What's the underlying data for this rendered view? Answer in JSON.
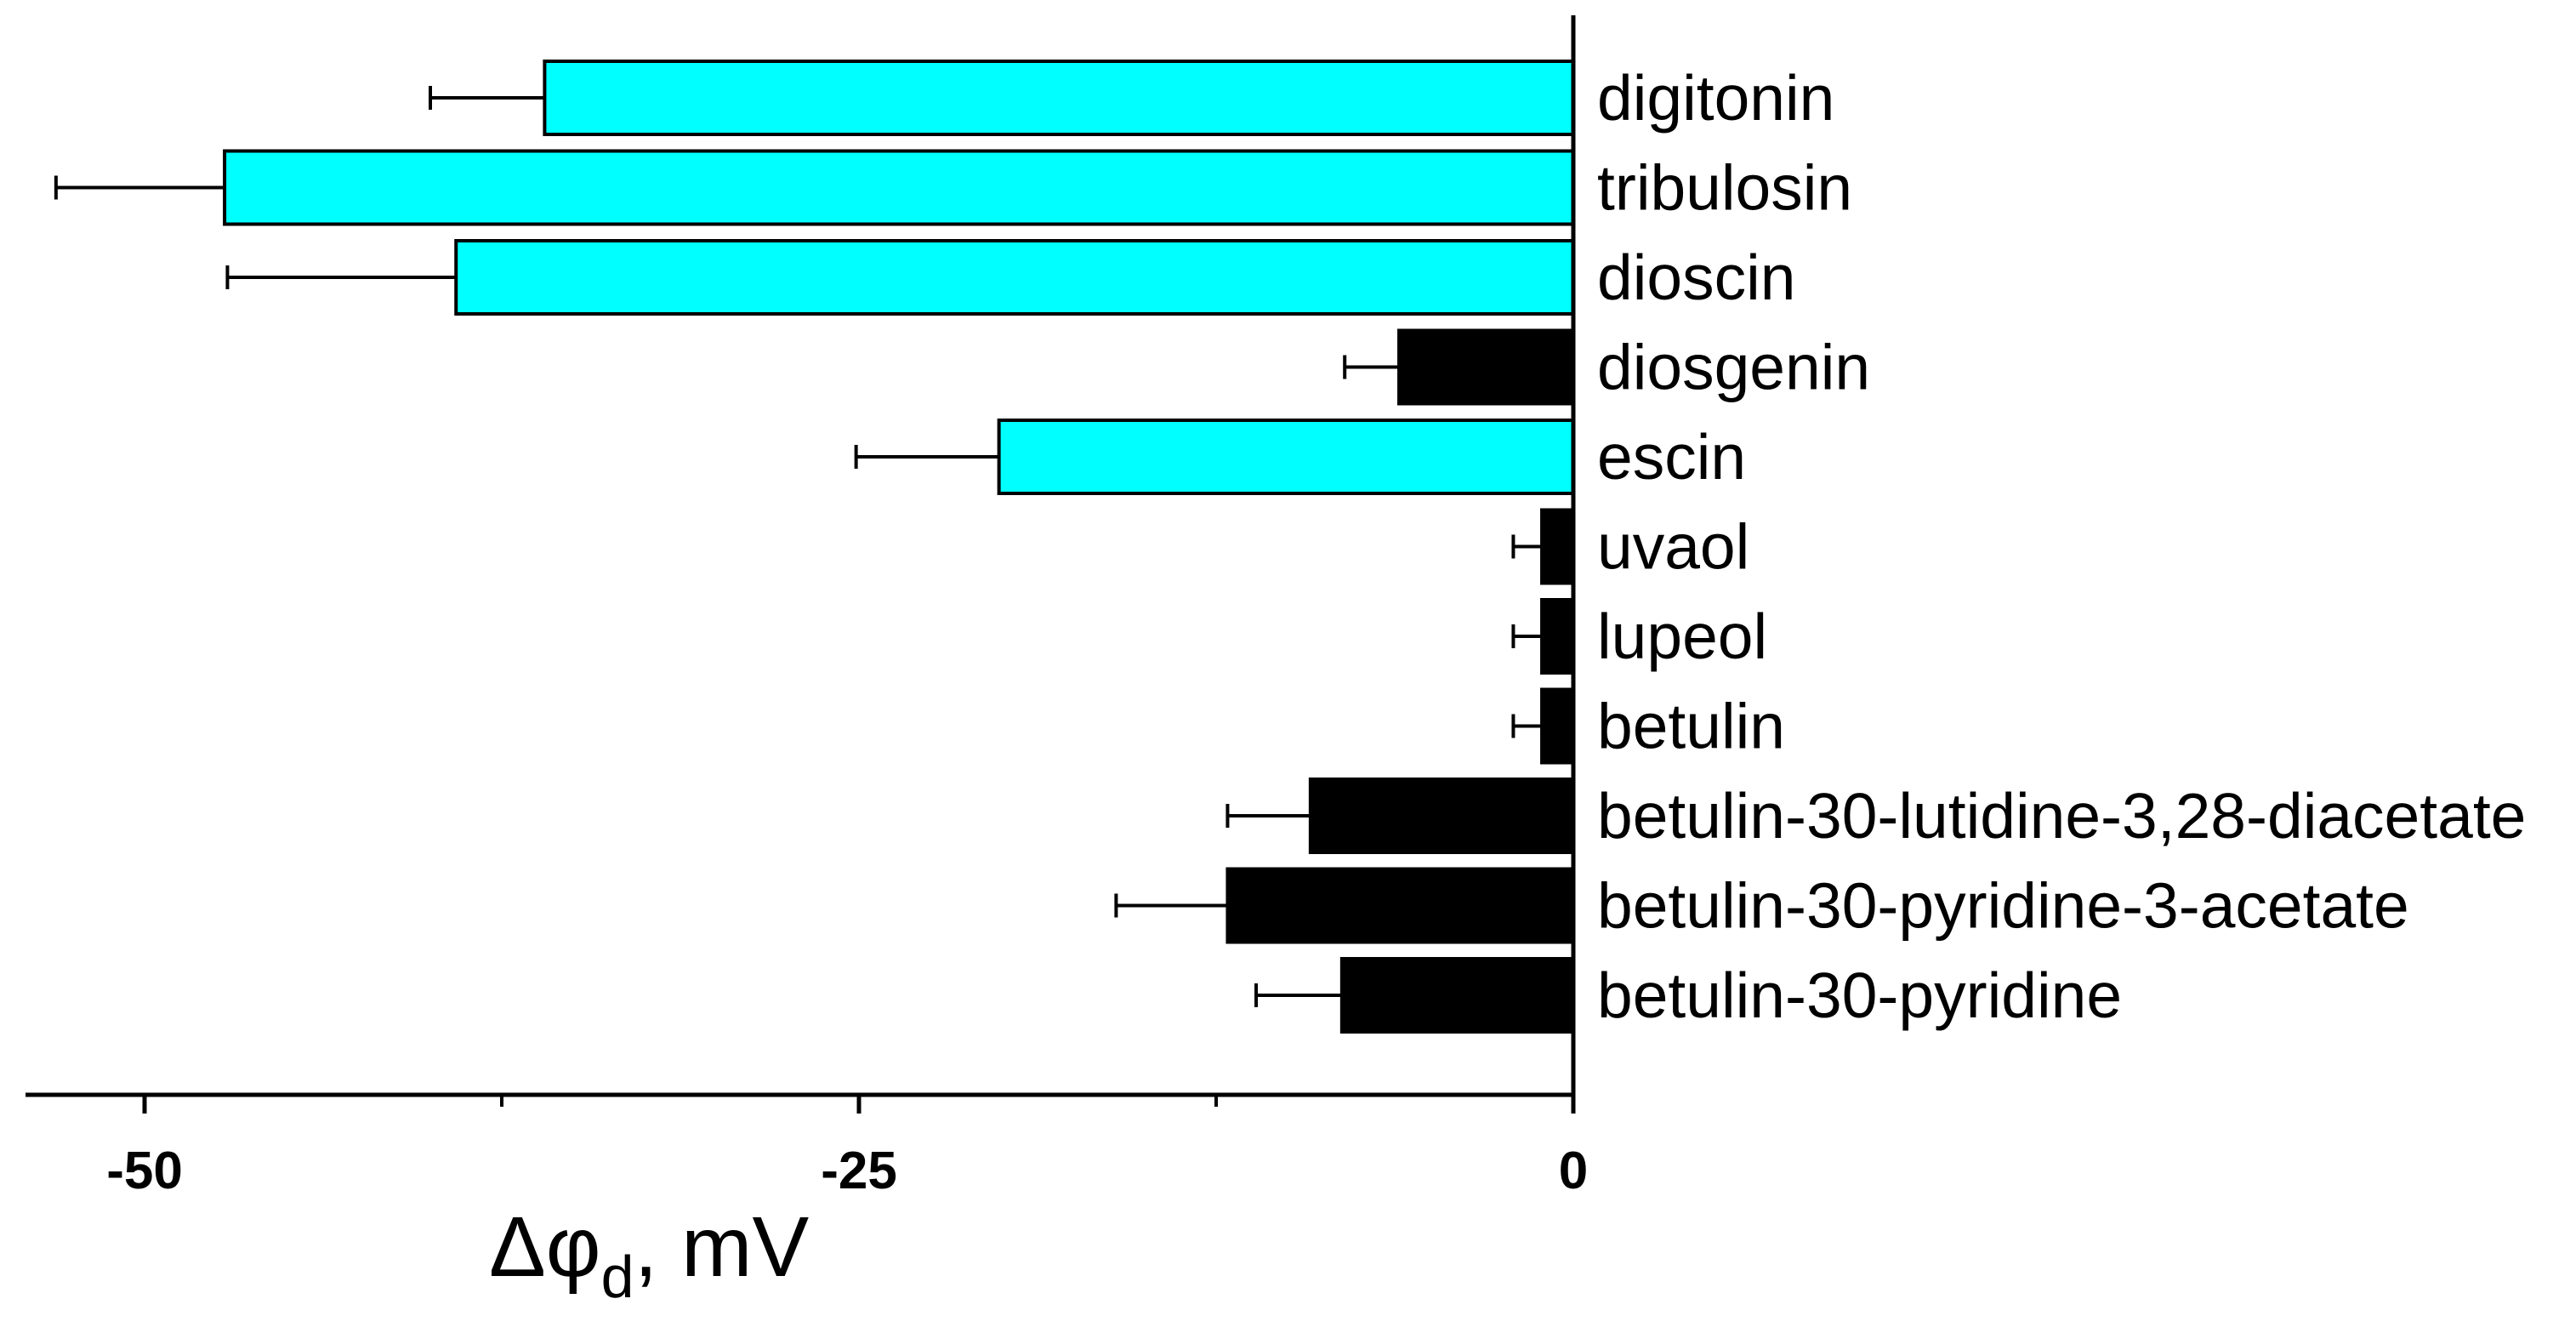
{
  "chart_data": {
    "type": "bar",
    "orientation": "horizontal",
    "categories": [
      "digitonin",
      "tribulosin",
      "dioscin",
      "diosgenin",
      "escin",
      "uvaol",
      "lupeol",
      "betulin",
      "betulin-30-lutidine-3,28-diacetate",
      "betulin-30-pyridine-3-acetate",
      "betulin-30-pyridine"
    ],
    "values": [
      -36,
      -47.2,
      -39.1,
      -6.1,
      -20.1,
      -1.1,
      -1.1,
      -1.1,
      -9.2,
      -12.1,
      -8.1
    ],
    "errors": [
      4.0,
      5.9,
      8.0,
      1.9,
      5.0,
      1.0,
      1.0,
      1.0,
      2.9,
      3.9,
      3.0
    ],
    "colors": [
      "#00ffff",
      "#00ffff",
      "#00ffff",
      "#000000",
      "#00ffff",
      "#000000",
      "#000000",
      "#000000",
      "#000000",
      "#000000",
      "#000000"
    ],
    "xlim": [
      -54,
      0
    ],
    "xticks": [
      -50,
      -25,
      0
    ],
    "xtick_labels": [
      "-50",
      "-25",
      "0"
    ],
    "minor_ticks": [
      -37.5,
      -12.5
    ],
    "xlabel": {
      "symbol": "Δφ",
      "subscript": "d",
      "unit": ", mV"
    },
    "grid": false,
    "legend": "none"
  }
}
